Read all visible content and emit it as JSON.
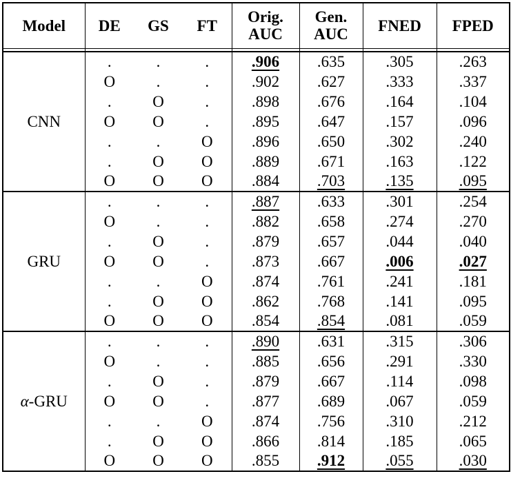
{
  "header": {
    "columns": [
      "Model",
      "DE",
      "GS",
      "FT",
      "Orig.\nAUC",
      "Gen.\nAUC",
      "FNED",
      "FPED"
    ]
  },
  "sections": [
    {
      "model": "CNN",
      "italic_first_char": false,
      "rows": [
        {
          "flags": [
            ".",
            ".",
            "."
          ],
          "values": [
            {
              "text": ".906",
              "bold": true,
              "underline": true
            },
            {
              "text": ".635"
            },
            {
              "text": ".305"
            },
            {
              "text": ".263"
            }
          ]
        },
        {
          "flags": [
            "O",
            ".",
            "."
          ],
          "values": [
            {
              "text": ".902"
            },
            {
              "text": ".627"
            },
            {
              "text": ".333"
            },
            {
              "text": ".337"
            }
          ]
        },
        {
          "flags": [
            ".",
            "O",
            "."
          ],
          "values": [
            {
              "text": ".898"
            },
            {
              "text": ".676"
            },
            {
              "text": ".164"
            },
            {
              "text": ".104"
            }
          ]
        },
        {
          "flags": [
            "O",
            "O",
            "."
          ],
          "values": [
            {
              "text": ".895"
            },
            {
              "text": ".647"
            },
            {
              "text": ".157"
            },
            {
              "text": ".096"
            }
          ]
        },
        {
          "flags": [
            ".",
            ".",
            "O"
          ],
          "values": [
            {
              "text": ".896"
            },
            {
              "text": ".650"
            },
            {
              "text": ".302"
            },
            {
              "text": ".240"
            }
          ]
        },
        {
          "flags": [
            ".",
            "O",
            "O"
          ],
          "values": [
            {
              "text": ".889"
            },
            {
              "text": ".671"
            },
            {
              "text": ".163"
            },
            {
              "text": ".122"
            }
          ]
        },
        {
          "flags": [
            "O",
            "O",
            "O"
          ],
          "values": [
            {
              "text": ".884"
            },
            {
              "text": ".703",
              "underline": true
            },
            {
              "text": ".135",
              "underline": true
            },
            {
              "text": ".095",
              "underline": true
            }
          ]
        }
      ]
    },
    {
      "model": "GRU",
      "italic_first_char": false,
      "rows": [
        {
          "flags": [
            ".",
            ".",
            "."
          ],
          "values": [
            {
              "text": ".887",
              "underline": true
            },
            {
              "text": ".633"
            },
            {
              "text": ".301"
            },
            {
              "text": ".254"
            }
          ]
        },
        {
          "flags": [
            "O",
            ".",
            "."
          ],
          "values": [
            {
              "text": ".882"
            },
            {
              "text": ".658"
            },
            {
              "text": ".274"
            },
            {
              "text": ".270"
            }
          ]
        },
        {
          "flags": [
            ".",
            "O",
            "."
          ],
          "values": [
            {
              "text": ".879"
            },
            {
              "text": ".657"
            },
            {
              "text": ".044"
            },
            {
              "text": ".040"
            }
          ]
        },
        {
          "flags": [
            "O",
            "O",
            "."
          ],
          "values": [
            {
              "text": ".873"
            },
            {
              "text": ".667"
            },
            {
              "text": ".006",
              "bold": true,
              "underline": true
            },
            {
              "text": ".027",
              "bold": true,
              "underline": true
            }
          ]
        },
        {
          "flags": [
            ".",
            ".",
            "O"
          ],
          "values": [
            {
              "text": ".874"
            },
            {
              "text": ".761"
            },
            {
              "text": ".241"
            },
            {
              "text": ".181"
            }
          ]
        },
        {
          "flags": [
            ".",
            "O",
            "O"
          ],
          "values": [
            {
              "text": ".862"
            },
            {
              "text": ".768"
            },
            {
              "text": ".141"
            },
            {
              "text": ".095"
            }
          ]
        },
        {
          "flags": [
            "O",
            "O",
            "O"
          ],
          "values": [
            {
              "text": ".854"
            },
            {
              "text": ".854",
              "underline": true
            },
            {
              "text": ".081"
            },
            {
              "text": ".059"
            }
          ]
        }
      ]
    },
    {
      "model": "α-GRU",
      "italic_first_char": true,
      "rows": [
        {
          "flags": [
            ".",
            ".",
            "."
          ],
          "values": [
            {
              "text": ".890",
              "underline": true
            },
            {
              "text": ".631"
            },
            {
              "text": ".315"
            },
            {
              "text": ".306"
            }
          ]
        },
        {
          "flags": [
            "O",
            ".",
            "."
          ],
          "values": [
            {
              "text": ".885"
            },
            {
              "text": ".656"
            },
            {
              "text": ".291"
            },
            {
              "text": ".330"
            }
          ]
        },
        {
          "flags": [
            ".",
            "O",
            "."
          ],
          "values": [
            {
              "text": ".879"
            },
            {
              "text": ".667"
            },
            {
              "text": ".114"
            },
            {
              "text": ".098"
            }
          ]
        },
        {
          "flags": [
            "O",
            "O",
            "."
          ],
          "values": [
            {
              "text": ".877"
            },
            {
              "text": ".689"
            },
            {
              "text": ".067"
            },
            {
              "text": ".059"
            }
          ]
        },
        {
          "flags": [
            ".",
            ".",
            "O"
          ],
          "values": [
            {
              "text": ".874"
            },
            {
              "text": ".756"
            },
            {
              "text": ".310"
            },
            {
              "text": ".212"
            }
          ]
        },
        {
          "flags": [
            ".",
            "O",
            "O"
          ],
          "values": [
            {
              "text": ".866"
            },
            {
              "text": ".814"
            },
            {
              "text": ".185"
            },
            {
              "text": ".065"
            }
          ]
        },
        {
          "flags": [
            "O",
            "O",
            "O"
          ],
          "values": [
            {
              "text": ".855"
            },
            {
              "text": ".912",
              "bold": true,
              "underline": true
            },
            {
              "text": ".055",
              "underline": true
            },
            {
              "text": ".030",
              "underline": true
            }
          ]
        }
      ]
    }
  ],
  "colors": {
    "text": "#000000",
    "border": "#000000",
    "background": "#ffffff"
  }
}
